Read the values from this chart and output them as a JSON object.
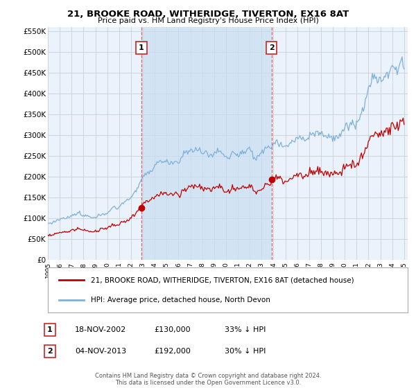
{
  "title": "21, BROOKE ROAD, WITHERIDGE, TIVERTON, EX16 8AT",
  "subtitle": "Price paid vs. HM Land Registry's House Price Index (HPI)",
  "ylim": [
    0,
    560000
  ],
  "yticks": [
    0,
    50000,
    100000,
    150000,
    200000,
    250000,
    300000,
    350000,
    400000,
    450000,
    500000,
    550000
  ],
  "ytick_labels": [
    "£0",
    "£50K",
    "£100K",
    "£150K",
    "£200K",
    "£250K",
    "£300K",
    "£350K",
    "£400K",
    "£450K",
    "£500K",
    "£550K"
  ],
  "hpi_color": "#7EB0D9",
  "price_color": "#C00000",
  "vline_color": "#E06060",
  "purchase1_year": 2002.87,
  "purchase1_price": 130000,
  "purchase1_pct": "33% ↓ HPI",
  "purchase1_date": "18-NOV-2002",
  "purchase2_year": 2013.84,
  "purchase2_price": 192000,
  "purchase2_pct": "30% ↓ HPI",
  "purchase2_date": "04-NOV-2013",
  "legend_label1": "21, BROOKE ROAD, WITHERIDGE, TIVERTON, EX16 8AT (detached house)",
  "legend_label2": "HPI: Average price, detached house, North Devon",
  "footer": "Contains HM Land Registry data © Crown copyright and database right 2024.\nThis data is licensed under the Open Government Licence v3.0.",
  "bg_color": "#FFFFFF",
  "plot_bg_color": "#EAF2FB",
  "grid_color": "#C8C8C8",
  "shade_color": "#C8DDF0"
}
